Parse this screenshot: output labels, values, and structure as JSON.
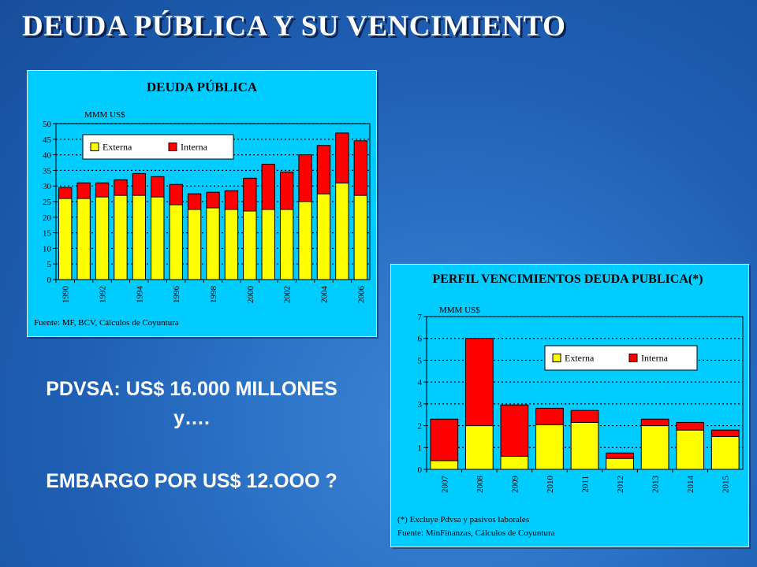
{
  "slide": {
    "title": "DEUDA PÚBLICA Y SU VENCIMIENTO",
    "notes": [
      "PDVSA: US$ 16.000 MILLONES",
      "y….",
      "EMBARGO POR US$ 12.OOO ?"
    ]
  },
  "chart_data": [
    {
      "type": "bar",
      "stacked": true,
      "title": "DEUDA PÚBLICA",
      "unit_label": "MMM US$",
      "ylim": [
        0,
        50
      ],
      "yticks": [
        0,
        5,
        10,
        15,
        20,
        25,
        30,
        35,
        40,
        45,
        50
      ],
      "grid": true,
      "legend_position": "top-left",
      "categories": [
        "1990",
        "1991",
        "1992",
        "1993",
        "1994",
        "1995",
        "1996",
        "1997",
        "1998",
        "1999",
        "2000",
        "2001",
        "2002",
        "2003",
        "2004",
        "2005",
        "2006"
      ],
      "category_labels": [
        "1990",
        "",
        "1992",
        "",
        "1994",
        "",
        "1996",
        "",
        "1998",
        "",
        "2000",
        "",
        "2002",
        "",
        "2004",
        "",
        "2006"
      ],
      "series": [
        {
          "name": "Externa",
          "color": "#ffff00",
          "values": [
            26,
            26,
            26.5,
            27,
            27,
            26.5,
            24,
            22.5,
            23,
            22.5,
            22,
            22.5,
            22.5,
            25,
            27.5,
            31,
            27
          ]
        },
        {
          "name": "Interna",
          "color": "#ff0000",
          "values": [
            3.5,
            5,
            4.5,
            5,
            7,
            6.5,
            6.5,
            5,
            5,
            6,
            10.5,
            14.5,
            12,
            15,
            15.5,
            16,
            17.5
          ]
        }
      ],
      "source": "Fuente: MF, BCV, Cálculos de Coyuntura"
    },
    {
      "type": "bar",
      "stacked": true,
      "title": "PERFIL VENCIMIENTOS DEUDA PUBLICA(*)",
      "unit_label": "MMM US$",
      "ylim": [
        0,
        7
      ],
      "yticks": [
        0,
        1,
        2,
        3,
        4,
        5,
        6,
        7
      ],
      "grid": true,
      "legend_position": "top-right",
      "categories": [
        "2007",
        "2008",
        "2009",
        "2010",
        "2011",
        "2012",
        "2013",
        "2014",
        "2015"
      ],
      "series": [
        {
          "name": "Externa",
          "color": "#ffff00",
          "values": [
            0.4,
            2.0,
            0.6,
            2.05,
            2.15,
            0.5,
            2.0,
            1.8,
            1.5
          ]
        },
        {
          "name": "Interna",
          "color": "#ff0000",
          "values": [
            1.9,
            4.0,
            2.35,
            0.75,
            0.55,
            0.25,
            0.3,
            0.35,
            0.3
          ]
        }
      ],
      "footnote": "(*) Excluye Pdvsa y pasivos laborales",
      "source": "Fuente: MinFinanzas, Cálculos de Coyuntura"
    }
  ]
}
